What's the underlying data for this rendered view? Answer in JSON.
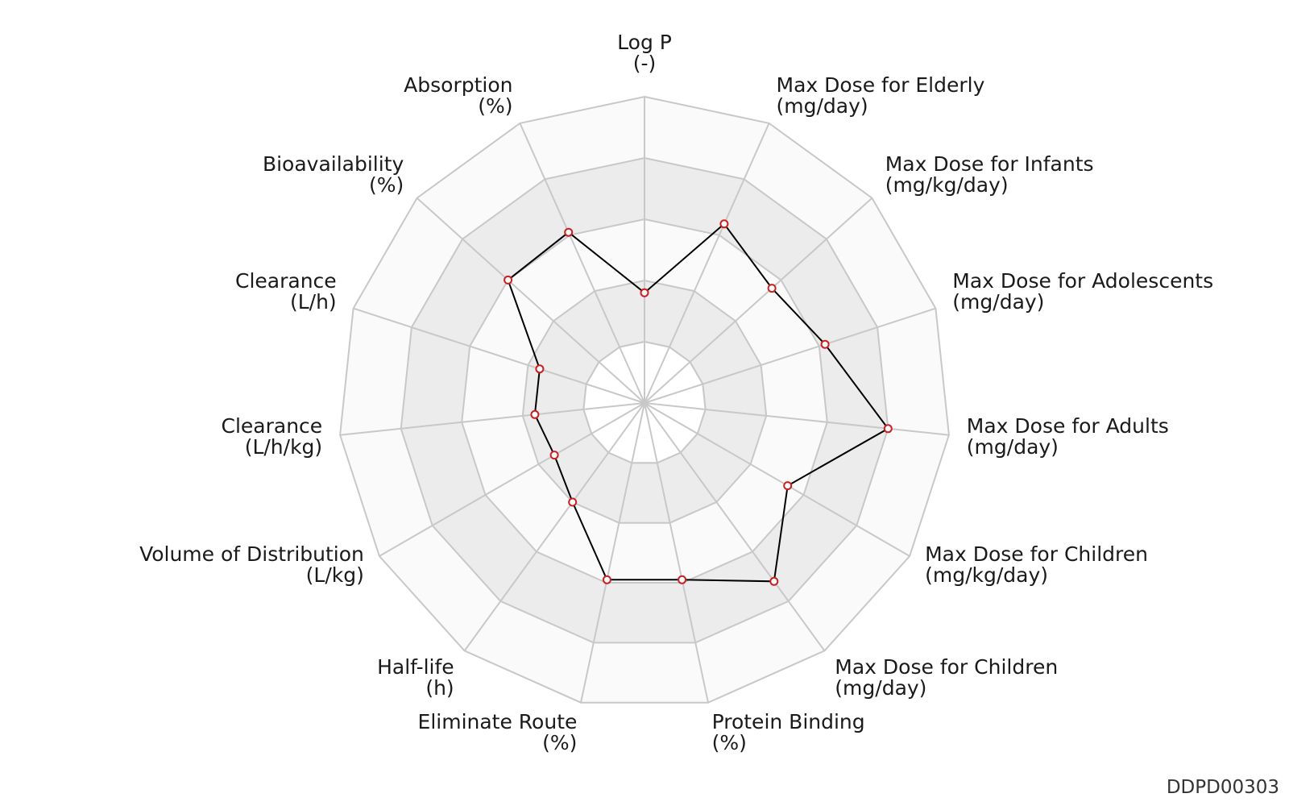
{
  "chart_data": {
    "type": "radar",
    "axes": [
      {
        "name": "Log P",
        "unit": "(-)",
        "value": 0.36
      },
      {
        "name": "Max Dose for Elderly",
        "unit": "(mg/day)",
        "value": 0.64
      },
      {
        "name": "Max Dose for Infants",
        "unit": "(mg/kg/day)",
        "value": 0.56
      },
      {
        "name": "Max Dose for Adolescents",
        "unit": "(mg/day)",
        "value": 0.62
      },
      {
        "name": "Max Dose for Adults",
        "unit": "(mg/day)",
        "value": 0.8
      },
      {
        "name": "Max Dose for Children",
        "unit": "(mg/kg/day)",
        "value": 0.54
      },
      {
        "name": "Max Dose for Children",
        "unit": "(mg/day)",
        "value": 0.72
      },
      {
        "name": "Protein Binding",
        "unit": "(%)",
        "value": 0.59
      },
      {
        "name": "Eliminate Route",
        "unit": "(%)",
        "value": 0.59
      },
      {
        "name": "Half-life",
        "unit": "(h)",
        "value": 0.4
      },
      {
        "name": "Volume of Distribution",
        "unit": "(L/kg)",
        "value": 0.34
      },
      {
        "name": "Clearance",
        "unit": "(L/h/kg)",
        "value": 0.36
      },
      {
        "name": "Clearance",
        "unit": "(L/h)",
        "value": 0.36
      },
      {
        "name": "Bioavailability",
        "unit": "(%)",
        "value": 0.6
      },
      {
        "name": "Absorption",
        "unit": "(%)",
        "value": 0.61
      }
    ],
    "rings": 5,
    "range": [
      0,
      1
    ],
    "colors": {
      "line": "#000000",
      "marker_edge": "#cc1f1f",
      "marker_fill": "#ffffff",
      "grid": "#c8c8c8",
      "band_light": "#fafafa",
      "band_dark": "#ececec"
    }
  },
  "watermark": "DDPD00303"
}
